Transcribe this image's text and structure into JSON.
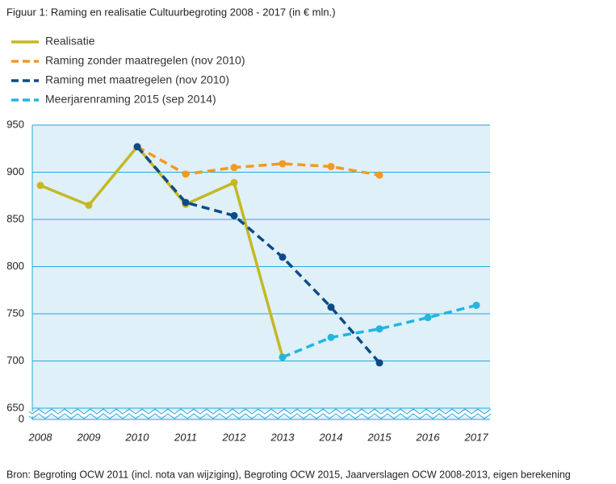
{
  "chart_data": {
    "type": "line",
    "title": "Figuur 1: Raming en realisatie Cultuurbegroting 2008 - 2017 (in € mln.)",
    "categories": [
      "2008",
      "2009",
      "2010",
      "2011",
      "2012",
      "2013",
      "2014",
      "2015",
      "2016",
      "2017"
    ],
    "series": [
      {
        "name": "Realisatie",
        "color": "#c4b823",
        "dashed": false,
        "values": [
          886,
          865,
          927,
          866,
          889,
          704,
          null,
          null,
          null,
          null
        ]
      },
      {
        "name": "Raming zonder maatregelen (nov 2010)",
        "color": "#f29a1f",
        "dashed": true,
        "values": [
          null,
          null,
          927,
          898,
          905,
          909,
          906,
          897,
          null,
          null
        ]
      },
      {
        "name": "Raming met maatregelen (nov 2010)",
        "color": "#0d4a87",
        "dashed": true,
        "values": [
          null,
          null,
          927,
          868,
          854,
          810,
          757,
          698,
          null,
          null
        ]
      },
      {
        "name": "Meerjarenraming 2015 (sep 2014)",
        "color": "#22b6de",
        "dashed": true,
        "values": [
          null,
          null,
          null,
          null,
          null,
          704,
          725,
          734,
          746,
          759
        ]
      }
    ],
    "ylim": [
      650,
      950
    ],
    "yticks": [
      0,
      650,
      700,
      750,
      800,
      850,
      900,
      950
    ],
    "axis_break": true,
    "grid": true,
    "source": "Bron: Begroting OCW 2011 (incl. nota van wijziging), Begroting OCW 2015, Jaarverslagen OCW 2008-2013, eigen berekening"
  }
}
